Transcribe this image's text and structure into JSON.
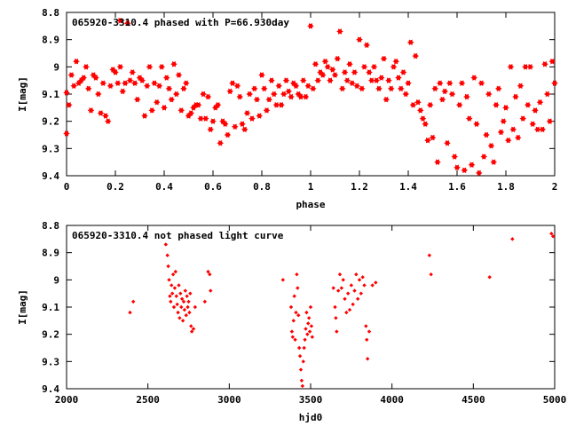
{
  "chart_data": [
    {
      "type": "scatter",
      "title": "065920-3310.4 phased with P=66.930day",
      "xlabel": "phase",
      "ylabel": "I[mag]",
      "xlim": [
        0,
        2
      ],
      "ylim": [
        9.4,
        8.8
      ],
      "y_inverted": true,
      "x_ticks": [
        "0",
        "0.2",
        "0.4",
        "0.6",
        "0.8",
        "1",
        "1.2",
        "1.4",
        "1.6",
        "1.8",
        "2"
      ],
      "y_ticks": [
        "8.8",
        "8.9",
        "9",
        "9.1",
        "9.2",
        "9.3",
        "9.4"
      ],
      "marker": "star",
      "color": "#ff0000",
      "grid": false,
      "points": [
        [
          0.0,
          9.245
        ],
        [
          0.0,
          9.095
        ],
        [
          0.01,
          9.14
        ],
        [
          0.02,
          9.03
        ],
        [
          0.03,
          9.07
        ],
        [
          0.04,
          8.98
        ],
        [
          0.05,
          9.06
        ],
        [
          0.06,
          9.05
        ],
        [
          0.07,
          9.04
        ],
        [
          0.08,
          9.0
        ],
        [
          0.09,
          9.08
        ],
        [
          0.1,
          9.16
        ],
        [
          0.11,
          9.03
        ],
        [
          0.12,
          9.04
        ],
        [
          0.13,
          9.1
        ],
        [
          0.14,
          9.17
        ],
        [
          0.15,
          9.06
        ],
        [
          0.16,
          9.18
        ],
        [
          0.17,
          9.2
        ],
        [
          0.18,
          9.07
        ],
        [
          0.19,
          9.01
        ],
        [
          0.2,
          9.02
        ],
        [
          0.21,
          9.06
        ],
        [
          0.22,
          9.0
        ],
        [
          0.22,
          8.83
        ],
        [
          0.23,
          9.09
        ],
        [
          0.24,
          9.06
        ],
        [
          0.25,
          8.84
        ],
        [
          0.26,
          9.05
        ],
        [
          0.27,
          9.02
        ],
        [
          0.28,
          9.06
        ],
        [
          0.29,
          9.12
        ],
        [
          0.3,
          9.04
        ],
        [
          0.31,
          9.05
        ],
        [
          0.32,
          9.18
        ],
        [
          0.33,
          9.07
        ],
        [
          0.34,
          9.0
        ],
        [
          0.35,
          9.16
        ],
        [
          0.36,
          9.06
        ],
        [
          0.37,
          9.13
        ],
        [
          0.38,
          9.07
        ],
        [
          0.39,
          9.0
        ],
        [
          0.4,
          9.15
        ],
        [
          0.41,
          9.04
        ],
        [
          0.42,
          9.08
        ],
        [
          0.43,
          9.12
        ],
        [
          0.44,
          8.99
        ],
        [
          0.45,
          9.1
        ],
        [
          0.46,
          9.03
        ],
        [
          0.47,
          9.16
        ],
        [
          0.48,
          9.08
        ],
        [
          0.49,
          9.06
        ],
        [
          0.5,
          9.18
        ],
        [
          0.51,
          9.17
        ],
        [
          0.52,
          9.15
        ],
        [
          0.53,
          9.14
        ],
        [
          0.54,
          9.14
        ],
        [
          0.55,
          9.19
        ],
        [
          0.56,
          9.1
        ],
        [
          0.57,
          9.19
        ],
        [
          0.58,
          9.11
        ],
        [
          0.59,
          9.23
        ],
        [
          0.6,
          9.2
        ],
        [
          0.61,
          9.15
        ],
        [
          0.62,
          9.14
        ],
        [
          0.63,
          9.28
        ],
        [
          0.64,
          9.2
        ],
        [
          0.65,
          9.21
        ],
        [
          0.66,
          9.25
        ],
        [
          0.67,
          9.09
        ],
        [
          0.68,
          9.06
        ],
        [
          0.69,
          9.22
        ],
        [
          0.7,
          9.07
        ],
        [
          0.71,
          9.11
        ],
        [
          0.72,
          9.21
        ],
        [
          0.73,
          9.23
        ],
        [
          0.74,
          9.17
        ],
        [
          0.75,
          9.1
        ],
        [
          0.76,
          9.19
        ],
        [
          0.77,
          9.08
        ],
        [
          0.78,
          9.12
        ],
        [
          0.79,
          9.18
        ],
        [
          0.8,
          9.03
        ],
        [
          0.81,
          9.08
        ],
        [
          0.82,
          9.16
        ],
        [
          0.83,
          9.12
        ],
        [
          0.84,
          9.05
        ],
        [
          0.85,
          9.1
        ],
        [
          0.86,
          9.14
        ],
        [
          0.87,
          9.07
        ],
        [
          0.88,
          9.14
        ],
        [
          0.89,
          9.1
        ],
        [
          0.9,
          9.05
        ],
        [
          0.91,
          9.09
        ],
        [
          0.92,
          9.11
        ],
        [
          0.93,
          9.06
        ],
        [
          0.94,
          9.07
        ],
        [
          0.95,
          9.1
        ],
        [
          0.96,
          9.11
        ],
        [
          0.97,
          9.05
        ],
        [
          0.98,
          9.11
        ],
        [
          0.99,
          9.07
        ],
        [
          1.0,
          8.85
        ],
        [
          1.01,
          9.08
        ],
        [
          1.02,
          8.99
        ],
        [
          1.03,
          9.05
        ],
        [
          1.04,
          9.02
        ],
        [
          1.05,
          9.03
        ],
        [
          1.06,
          8.98
        ],
        [
          1.07,
          9.0
        ],
        [
          1.08,
          9.05
        ],
        [
          1.09,
          9.01
        ],
        [
          1.1,
          9.03
        ],
        [
          1.11,
          8.97
        ],
        [
          1.12,
          8.87
        ],
        [
          1.13,
          9.08
        ],
        [
          1.14,
          9.02
        ],
        [
          1.15,
          9.05
        ],
        [
          1.16,
          8.99
        ],
        [
          1.17,
          9.06
        ],
        [
          1.18,
          9.02
        ],
        [
          1.19,
          9.07
        ],
        [
          1.2,
          8.9
        ],
        [
          1.21,
          9.08
        ],
        [
          1.22,
          9.0
        ],
        [
          1.23,
          8.92
        ],
        [
          1.24,
          9.02
        ],
        [
          1.25,
          9.05
        ],
        [
          1.26,
          9.0
        ],
        [
          1.27,
          9.05
        ],
        [
          1.28,
          9.08
        ],
        [
          1.29,
          9.04
        ],
        [
          1.3,
          8.97
        ],
        [
          1.31,
          9.12
        ],
        [
          1.32,
          9.05
        ],
        [
          1.33,
          9.08
        ],
        [
          1.34,
          9.0
        ],
        [
          1.35,
          8.98
        ],
        [
          1.36,
          9.04
        ],
        [
          1.37,
          9.08
        ],
        [
          1.38,
          9.02
        ],
        [
          1.39,
          9.1
        ],
        [
          1.4,
          9.06
        ],
        [
          1.41,
          8.91
        ],
        [
          1.42,
          9.14
        ],
        [
          1.43,
          8.96
        ],
        [
          1.44,
          9.13
        ],
        [
          1.45,
          9.16
        ],
        [
          1.46,
          9.19
        ],
        [
          1.47,
          9.21
        ],
        [
          1.48,
          9.27
        ],
        [
          1.49,
          9.14
        ],
        [
          1.5,
          9.26
        ],
        [
          1.51,
          9.08
        ],
        [
          1.52,
          9.35
        ],
        [
          1.53,
          9.06
        ],
        [
          1.54,
          9.12
        ],
        [
          1.55,
          9.09
        ],
        [
          1.56,
          9.28
        ],
        [
          1.57,
          9.06
        ],
        [
          1.58,
          9.1
        ],
        [
          1.59,
          9.33
        ],
        [
          1.6,
          9.37
        ],
        [
          1.61,
          9.14
        ],
        [
          1.62,
          9.06
        ],
        [
          1.63,
          9.38
        ],
        [
          1.64,
          9.11
        ],
        [
          1.65,
          9.19
        ],
        [
          1.66,
          9.36
        ],
        [
          1.67,
          9.04
        ],
        [
          1.68,
          9.21
        ],
        [
          1.69,
          9.39
        ],
        [
          1.7,
          9.06
        ],
        [
          1.71,
          9.33
        ],
        [
          1.72,
          9.25
        ],
        [
          1.73,
          9.1
        ],
        [
          1.74,
          9.29
        ],
        [
          1.75,
          9.35
        ],
        [
          1.76,
          9.14
        ],
        [
          1.77,
          9.08
        ],
        [
          1.78,
          9.24
        ],
        [
          1.79,
          9.2
        ],
        [
          1.8,
          9.15
        ],
        [
          1.81,
          9.27
        ],
        [
          1.82,
          9.0
        ],
        [
          1.83,
          9.23
        ],
        [
          1.84,
          9.11
        ],
        [
          1.85,
          9.26
        ],
        [
          1.86,
          9.07
        ],
        [
          1.87,
          9.19
        ],
        [
          1.88,
          9.0
        ],
        [
          1.89,
          9.14
        ],
        [
          1.9,
          9.0
        ],
        [
          1.91,
          9.21
        ],
        [
          1.92,
          9.16
        ],
        [
          1.93,
          9.23
        ],
        [
          1.94,
          9.13
        ],
        [
          1.95,
          9.23
        ],
        [
          1.96,
          8.99
        ],
        [
          1.97,
          9.1
        ],
        [
          1.98,
          9.2
        ],
        [
          1.99,
          8.98
        ],
        [
          2.0,
          9.06
        ]
      ]
    },
    {
      "type": "scatter",
      "title": "065920-3310.4 not phased light curve",
      "xlabel": "hjd0",
      "ylabel": "I[mag]",
      "xlim": [
        2000,
        5000
      ],
      "ylim": [
        9.4,
        8.8
      ],
      "y_inverted": true,
      "x_ticks": [
        "2000",
        "2500",
        "3000",
        "3500",
        "4000",
        "4500",
        "5000"
      ],
      "y_ticks": [
        "8.8",
        "8.9",
        "9",
        "9.1",
        "9.2",
        "9.3",
        "9.4"
      ],
      "marker": "diamond",
      "color": "#ff0000",
      "grid": false,
      "points": [
        [
          2390,
          9.12
        ],
        [
          2410,
          9.08
        ],
        [
          2610,
          8.87
        ],
        [
          2620,
          8.91
        ],
        [
          2625,
          8.95
        ],
        [
          2630,
          9.0
        ],
        [
          2635,
          9.06
        ],
        [
          2640,
          9.08
        ],
        [
          2645,
          9.02
        ],
        [
          2650,
          9.05
        ],
        [
          2655,
          8.98
        ],
        [
          2660,
          9.1
        ],
        [
          2665,
          9.03
        ],
        [
          2670,
          8.97
        ],
        [
          2675,
          9.06
        ],
        [
          2680,
          9.09
        ],
        [
          2685,
          9.12
        ],
        [
          2690,
          9.02
        ],
        [
          2695,
          9.14
        ],
        [
          2700,
          9.05
        ],
        [
          2705,
          9.1
        ],
        [
          2710,
          9.07
        ],
        [
          2715,
          9.15
        ],
        [
          2720,
          9.08
        ],
        [
          2725,
          9.11
        ],
        [
          2730,
          9.04
        ],
        [
          2735,
          9.13
        ],
        [
          2740,
          9.06
        ],
        [
          2745,
          9.1
        ],
        [
          2750,
          9.08
        ],
        [
          2755,
          9.12
        ],
        [
          2760,
          9.05
        ],
        [
          2765,
          9.17
        ],
        [
          2770,
          9.19
        ],
        [
          2780,
          9.18
        ],
        [
          2790,
          9.1
        ],
        [
          2850,
          9.08
        ],
        [
          2870,
          8.97
        ],
        [
          2880,
          8.98
        ],
        [
          2885,
          9.04
        ],
        [
          3330,
          9.0
        ],
        [
          3380,
          9.1
        ],
        [
          3385,
          9.19
        ],
        [
          3390,
          9.21
        ],
        [
          3395,
          9.15
        ],
        [
          3400,
          9.06
        ],
        [
          3405,
          9.22
        ],
        [
          3410,
          9.12
        ],
        [
          3415,
          8.98
        ],
        [
          3420,
          9.03
        ],
        [
          3425,
          9.13
        ],
        [
          3430,
          9.25
        ],
        [
          3435,
          9.28
        ],
        [
          3440,
          9.33
        ],
        [
          3445,
          9.37
        ],
        [
          3450,
          9.39
        ],
        [
          3455,
          9.3
        ],
        [
          3460,
          9.25
        ],
        [
          3465,
          9.22
        ],
        [
          3470,
          9.18
        ],
        [
          3475,
          9.12
        ],
        [
          3480,
          9.2
        ],
        [
          3485,
          9.16
        ],
        [
          3490,
          9.14
        ],
        [
          3495,
          9.19
        ],
        [
          3500,
          9.1
        ],
        [
          3505,
          9.17
        ],
        [
          3510,
          9.21
        ],
        [
          3640,
          9.03
        ],
        [
          3650,
          9.1
        ],
        [
          3655,
          9.14
        ],
        [
          3660,
          9.19
        ],
        [
          3670,
          9.04
        ],
        [
          3680,
          8.98
        ],
        [
          3690,
          9.03
        ],
        [
          3700,
          9.0
        ],
        [
          3710,
          9.07
        ],
        [
          3720,
          9.12
        ],
        [
          3730,
          9.05
        ],
        [
          3740,
          9.11
        ],
        [
          3750,
          9.02
        ],
        [
          3760,
          9.09
        ],
        [
          3770,
          9.04
        ],
        [
          3780,
          8.98
        ],
        [
          3790,
          9.07
        ],
        [
          3800,
          9.0
        ],
        [
          3810,
          9.05
        ],
        [
          3820,
          8.99
        ],
        [
          3830,
          9.02
        ],
        [
          3840,
          9.17
        ],
        [
          3845,
          9.22
        ],
        [
          3850,
          9.29
        ],
        [
          3860,
          9.19
        ],
        [
          3880,
          9.02
        ],
        [
          3900,
          9.01
        ],
        [
          4230,
          8.91
        ],
        [
          4240,
          8.98
        ],
        [
          4600,
          8.99
        ],
        [
          4740,
          8.85
        ],
        [
          4980,
          8.83
        ],
        [
          4990,
          8.84
        ]
      ]
    }
  ]
}
